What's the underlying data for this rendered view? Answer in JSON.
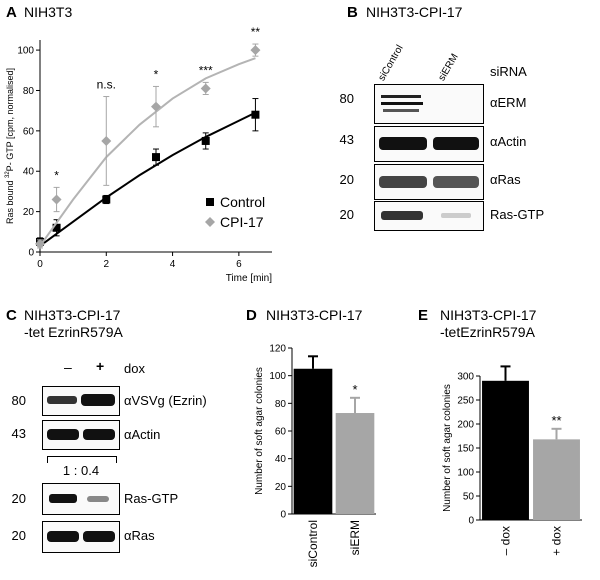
{
  "panels": {
    "a": {
      "letter": "A",
      "title": "NIH3T3"
    },
    "b": {
      "letter": "B",
      "title": "NIH3T3-CPI-17"
    },
    "c": {
      "letter": "C",
      "title_line1": "NIH3T3-CPI-17",
      "title_line2": "-tet EzrinR579A"
    },
    "d": {
      "letter": "D",
      "title": "NIH3T3-CPI-17"
    },
    "e": {
      "letter": "E",
      "title_line1": "NIH3T3-CPI-17",
      "title_line2": "-tetEzrinR579A"
    }
  },
  "blot_b": {
    "lanes": [
      "siControl",
      "siERM"
    ],
    "header": "siRNA",
    "rows": [
      {
        "mw": "80",
        "label": "αERM"
      },
      {
        "mw": "43",
        "label": "αActin"
      },
      {
        "mw": "20",
        "label": "αRas"
      },
      {
        "mw": "20",
        "label": "Ras-GTP"
      }
    ]
  },
  "blot_c": {
    "lanes": [
      "–",
      "+"
    ],
    "header": "dox",
    "ratio": "1 : 0.4",
    "rows": [
      {
        "mw": "80",
        "label": "αVSVg (Ezrin)"
      },
      {
        "mw": "43",
        "label": "αActin"
      },
      {
        "mw": "20",
        "label": "Ras-GTP"
      },
      {
        "mw": "20",
        "label": "αRas"
      }
    ]
  },
  "colors": {
    "black": "#000000",
    "gray": "#a6a6a6",
    "cpi_line": "#b4b4b4"
  },
  "chart_data": [
    {
      "type": "line",
      "panel": "A",
      "xlabel": "Time [min]",
      "ylabel": "Ras bound 32P- GTP [cpm, normalised]",
      "ylabel_parts": [
        "Ras bound ",
        "32",
        "P- GTP [cpm, normalised]"
      ],
      "xlim": [
        0,
        7
      ],
      "ylim": [
        0,
        105
      ],
      "xticks": [
        0,
        2,
        4,
        6
      ],
      "yticks": [
        0,
        20,
        40,
        60,
        80,
        100
      ],
      "legend_position": "bottom-right",
      "series": [
        {
          "name": "Control",
          "marker": "square",
          "color": "#000000",
          "x": [
            0,
            0.5,
            2,
            3.5,
            5,
            6.5
          ],
          "y": [
            5,
            12,
            26,
            47,
            55,
            68
          ],
          "err": [
            2,
            4,
            2,
            4,
            4,
            8
          ],
          "fit_x": [
            0,
            1,
            2,
            3,
            4,
            5,
            6,
            6.5
          ],
          "fit_y": [
            3,
            15,
            27,
            38,
            48,
            57,
            65,
            69
          ]
        },
        {
          "name": "CPI-17",
          "marker": "diamond",
          "color": "#a6a6a6",
          "x": [
            0,
            0.5,
            2,
            3.5,
            5,
            6.5
          ],
          "y": [
            4,
            26,
            55,
            72,
            81,
            100
          ],
          "err": [
            2,
            6,
            22,
            10,
            3,
            3
          ],
          "fit_x": [
            0,
            1,
            2,
            3,
            4,
            5,
            6,
            6.5
          ],
          "fit_y": [
            3,
            26,
            47,
            63,
            76,
            86,
            93,
            96
          ]
        }
      ],
      "annotations": [
        {
          "x": 0.5,
          "y": 36,
          "text": "*"
        },
        {
          "x": 2,
          "y": 81,
          "text": "n.s."
        },
        {
          "x": 3.5,
          "y": 86,
          "text": "*"
        },
        {
          "x": 5,
          "y": 88,
          "text": "***"
        },
        {
          "x": 6.5,
          "y": 107,
          "text": "**"
        }
      ]
    },
    {
      "type": "bar",
      "panel": "D",
      "ylabel": "Number of soft agar colonies",
      "categories": [
        "siControl",
        "siERM"
      ],
      "values": [
        105,
        73
      ],
      "errors": [
        9,
        11
      ],
      "colors": [
        "#000000",
        "#a6a6a6"
      ],
      "ylim": [
        0,
        120
      ],
      "yticks": [
        0,
        20,
        40,
        60,
        80,
        100,
        120
      ],
      "annotations": [
        {
          "category": "siERM",
          "text": "*"
        }
      ]
    },
    {
      "type": "bar",
      "panel": "E",
      "ylabel": "Number of soft agar colonies",
      "categories": [
        "– dox",
        "+ dox"
      ],
      "values": [
        290,
        168
      ],
      "errors": [
        30,
        22
      ],
      "colors": [
        "#000000",
        "#a6a6a6"
      ],
      "ylim": [
        0,
        300
      ],
      "yticks": [
        0,
        50,
        100,
        150,
        200,
        250,
        300
      ],
      "annotations": [
        {
          "category": "+ dox",
          "text": "**"
        }
      ]
    }
  ]
}
